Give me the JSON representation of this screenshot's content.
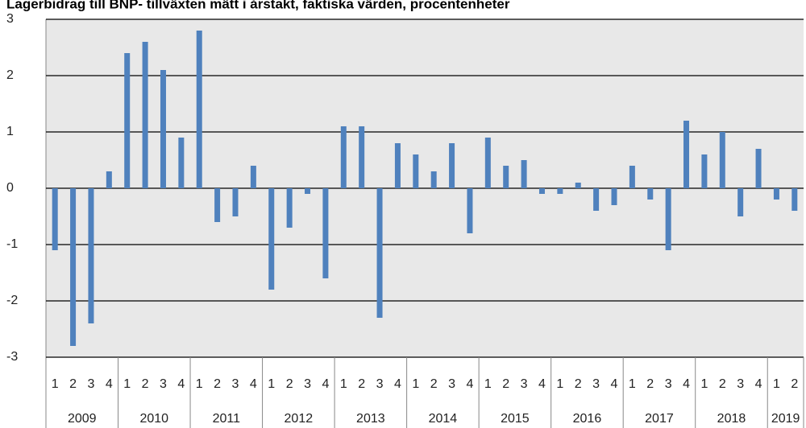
{
  "chart_data": {
    "type": "bar",
    "title": "Lagerbidrag till BNP- tillväxten mätt i årstakt, faktiska värden, procentenheter",
    "categories": [
      "1",
      "2",
      "3",
      "4",
      "1",
      "2",
      "3",
      "4",
      "1",
      "2",
      "3",
      "4",
      "1",
      "2",
      "3",
      "4",
      "1",
      "2",
      "3",
      "4",
      "1",
      "2",
      "3",
      "4",
      "1",
      "2",
      "3",
      "4",
      "1",
      "2",
      "3",
      "4",
      "1",
      "2",
      "3",
      "4",
      "1",
      "2",
      "3",
      "4",
      "1",
      "2"
    ],
    "years": [
      "2009",
      "2010",
      "2011",
      "2012",
      "2013",
      "2014",
      "2015",
      "2016",
      "2017",
      "2018",
      "2019"
    ],
    "values": [
      -1.1,
      -2.8,
      -2.4,
      0.3,
      2.4,
      2.6,
      2.1,
      0.9,
      2.8,
      -0.6,
      -0.5,
      0.4,
      -1.8,
      -0.7,
      -0.1,
      -1.6,
      1.1,
      1.1,
      -2.3,
      0.8,
      0.6,
      0.3,
      0.8,
      -0.8,
      0.9,
      0.4,
      0.5,
      -0.1,
      -0.1,
      0.1,
      -0.4,
      -0.3,
      0.4,
      -0.2,
      -1.1,
      1.2,
      0.6,
      1.0,
      -0.5,
      0.7,
      -0.2,
      -0.4
    ],
    "color": "#4f81bd",
    "ylim": [
      -3,
      3
    ],
    "yticks": [
      -3,
      -2,
      -1,
      0,
      1,
      2,
      3
    ],
    "grid": true
  }
}
